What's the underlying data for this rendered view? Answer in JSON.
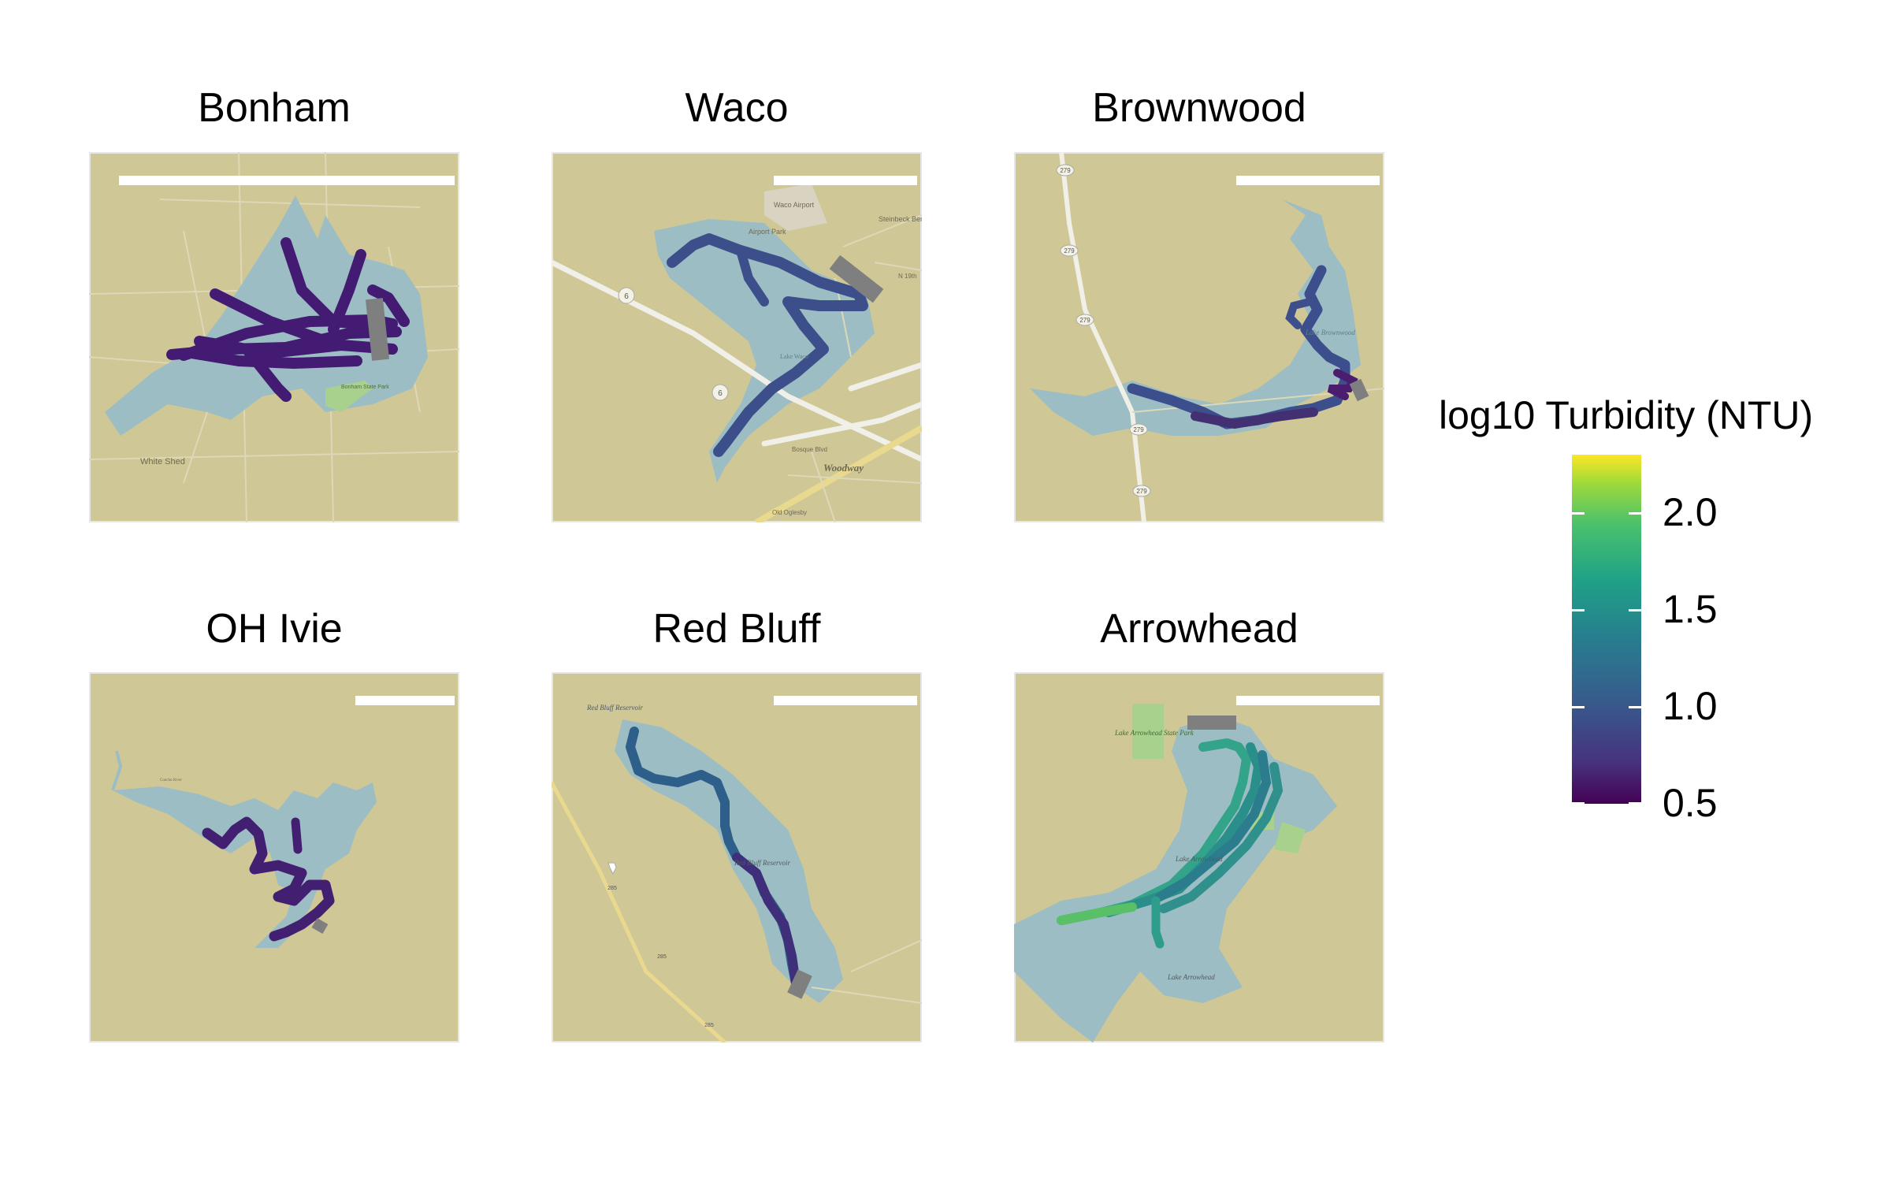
{
  "panels": [
    {
      "id": "bonham",
      "title": "Bonham",
      "turbidity": 0.6
    },
    {
      "id": "waco",
      "title": "Waco",
      "turbidity": 0.8
    },
    {
      "id": "brownwood",
      "title": "Brownwood",
      "turbidity": 0.8
    },
    {
      "id": "ohivie",
      "title": "OH Ivie",
      "turbidity": 0.55
    },
    {
      "id": "redbluff",
      "title": "Red Bluff",
      "turbidity": 0.9
    },
    {
      "id": "arrowhead",
      "title": "Arrowhead",
      "turbidity": 1.4
    }
  ],
  "map_labels": {
    "bonham": [
      "White Shed",
      "Bonham State Park"
    ],
    "waco": [
      "Waco Airport",
      "Airport Park",
      "Steinbeck Bend",
      "N 19th",
      "Woodway",
      "Bosque Blvd",
      "Lake Waco",
      "Old Oglesby"
    ],
    "brownwood": [
      "Lake Brownwood"
    ],
    "ohivie": [
      "Concho River"
    ],
    "redbluff": [
      "Red Bluff Reservoir",
      "Red Bluff Reservoir"
    ],
    "arrowhead": [
      "Lake Arrowhead State Park",
      "Lake Arrowhead",
      "Lake Arrowhead"
    ]
  },
  "road_shields": {
    "waco": [
      "6",
      "6"
    ],
    "brownwood": [
      "279",
      "279",
      "279",
      "279",
      "279"
    ],
    "redbluff": [
      "285",
      "285",
      "285"
    ]
  },
  "legend": {
    "title": "log10 Turbidity (NTU)",
    "ticks": [
      "2.0",
      "1.5",
      "1.0",
      "0.5"
    ],
    "tick_values": [
      2.0,
      1.5,
      1.0,
      0.5
    ],
    "range": [
      0.5,
      2.3
    ],
    "colormap": "viridis"
  },
  "colors": {
    "land": "#cfc796",
    "water": "#9cbdc3",
    "park": "#a9d18e",
    "road": "#f0efe8",
    "dock": "#7f7f7f",
    "scalebar": "#ffffff",
    "frame": "#e6e6e6"
  }
}
